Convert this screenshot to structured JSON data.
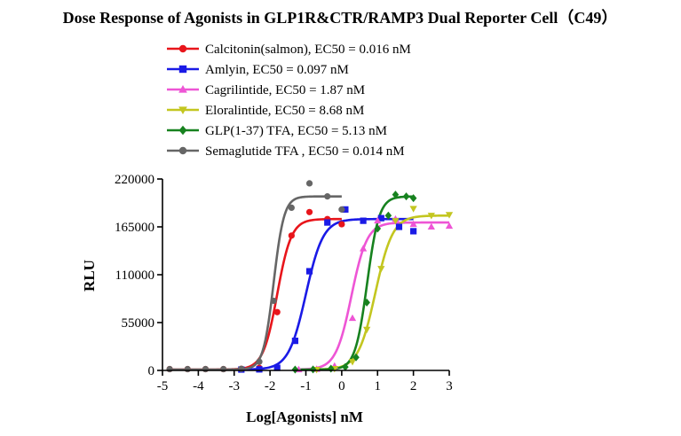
{
  "chart_data": {
    "type": "scatter",
    "title": "Dose Response of Agonists in GLP1R&CTR/RAMP3 Dual Reporter Cell（C49）",
    "xlabel": "Log[Agonists] nM",
    "ylabel": "RLU",
    "xlim": [
      -5,
      3
    ],
    "ylim": [
      0,
      220000
    ],
    "x_ticks": [
      "-5",
      "-4",
      "-3",
      "-2",
      "-1",
      "0",
      "1",
      "2",
      "3"
    ],
    "y_ticks": [
      "0",
      "55000",
      "110000",
      "165000",
      "220000"
    ],
    "x_tick_values": [
      -5,
      -4,
      -3,
      -2,
      -1,
      0,
      1,
      2,
      3
    ],
    "y_tick_values": [
      0,
      55000,
      110000,
      165000,
      220000
    ],
    "grid": false,
    "legend_position": "top",
    "series": [
      {
        "name": "Calcitonin(salmon), EC50 = 0.016 nM",
        "color": "#e8151b",
        "marker": "circle",
        "fit": {
          "bottom": 1000,
          "top": 174000,
          "log_ec50": -1.8,
          "hill": 2.2,
          "x_from": -4.8,
          "x_to": 0
        },
        "x": [
          -4.8,
          -4.3,
          -3.8,
          -3.3,
          -2.8,
          -2.3,
          -1.8,
          -1.4,
          -0.9,
          -0.4,
          0
        ],
        "y": [
          1500,
          1500,
          1500,
          1500,
          1800,
          3000,
          67000,
          155000,
          182000,
          174000,
          168000
        ]
      },
      {
        "name": "Amlyin, EC50 = 0.097 nM",
        "color": "#1a1ae6",
        "marker": "square",
        "fit": {
          "bottom": 1000,
          "top": 174000,
          "log_ec50": -1.0,
          "hill": 1.8,
          "x_from": -2.8,
          "x_to": 2
        },
        "x": [
          -2.8,
          -2.3,
          -1.8,
          -1.3,
          -0.9,
          -0.4,
          0.1,
          0.6,
          1.1,
          1.6,
          2
        ],
        "y": [
          1000,
          1200,
          3000,
          34000,
          114000,
          170000,
          185000,
          172000,
          175000,
          165000,
          160000
        ]
      },
      {
        "name": "Cagrilintide, EC50 = 1.87 nM",
        "color": "#ee55d5",
        "marker": "triangle-up",
        "fit": {
          "bottom": 1000,
          "top": 170000,
          "log_ec50": 0.27,
          "hill": 2.0,
          "x_from": -1.2,
          "x_to": 3
        },
        "x": [
          -1.2,
          -0.7,
          -0.2,
          0.3,
          0.6,
          1.0,
          1.5,
          2.0,
          2.5,
          3.0
        ],
        "y": [
          1000,
          1500,
          5000,
          60000,
          140000,
          172000,
          174000,
          168000,
          165000,
          166000
        ]
      },
      {
        "name": "Eloralintide, EC50 = 8.68 nM",
        "color": "#c3c620",
        "marker": "triangle-down",
        "fit": {
          "bottom": 1000,
          "top": 178000,
          "log_ec50": 0.94,
          "hill": 1.8,
          "x_from": -0.7,
          "x_to": 3
        },
        "x": [
          -0.7,
          -0.2,
          0.3,
          0.7,
          1.1,
          1.5,
          2.0,
          2.5,
          3.0
        ],
        "y": [
          1000,
          2000,
          10000,
          47000,
          117000,
          172000,
          186000,
          178000,
          179000
        ]
      },
      {
        "name": "GLP(1-37) TFA, EC50 = 5.13 nM",
        "color": "#17821f",
        "marker": "diamond",
        "fit": {
          "bottom": 1000,
          "top": 200000,
          "log_ec50": 0.71,
          "hill": 2.6,
          "x_from": -1.3,
          "x_to": 2
        },
        "x": [
          -1.3,
          -0.8,
          -0.3,
          0.1,
          0.4,
          0.7,
          1.0,
          1.3,
          1.5,
          1.8,
          2.0
        ],
        "y": [
          1000,
          1200,
          2000,
          4000,
          15000,
          78000,
          163000,
          178000,
          202000,
          200000,
          198000
        ]
      },
      {
        "name": "Semaglutide TFA , EC50 = 0.014 nM",
        "color": "#666666",
        "marker": "circle",
        "fit": {
          "bottom": 1000,
          "top": 200000,
          "log_ec50": -1.9,
          "hill": 3.0,
          "x_from": -4.8,
          "x_to": 0
        },
        "x": [
          -4.8,
          -4.3,
          -3.8,
          -3.3,
          -2.8,
          -2.3,
          -1.9,
          -1.4,
          -0.9,
          -0.4,
          0
        ],
        "y": [
          1500,
          1500,
          1500,
          1500,
          1800,
          10000,
          80000,
          187000,
          215000,
          200000,
          185000
        ]
      }
    ]
  }
}
